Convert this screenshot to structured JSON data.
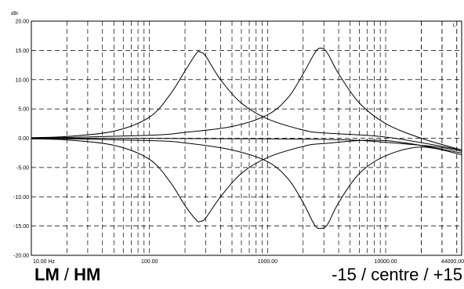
{
  "chart_data": {
    "type": "line",
    "y_unit": "dBr",
    "ylim": [
      -20,
      20
    ],
    "yticks": [
      "20.00",
      "15.00",
      "10.00",
      "5.00",
      "0.00",
      "-5.00",
      "-10.00",
      "-15.00",
      "-20.00"
    ],
    "xlim": [
      10,
      44000
    ],
    "x_scale": "log",
    "xticks": [
      {
        "value": 10,
        "label": "10.00 Hz"
      },
      {
        "value": 100,
        "label": "100.00"
      },
      {
        "value": 1000,
        "label": "1000.00"
      },
      {
        "value": 10000,
        "label": "10000.00"
      },
      {
        "value": 44000,
        "label": "44000.00"
      }
    ],
    "grid": true,
    "series": [
      {
        "x": [
          10,
          20,
          50,
          100,
          150,
          200,
          250,
          270,
          300,
          400,
          600,
          1000,
          2000,
          3000,
          10000,
          44000
        ],
        "y": [
          0.1,
          0.3,
          1.2,
          3.6,
          7.5,
          11.5,
          14.5,
          14.7,
          14.0,
          10.0,
          6.0,
          3.3,
          1.4,
          0.9,
          0.2,
          -2.0
        ]
      },
      {
        "x": [
          10,
          20,
          50,
          100,
          150,
          200,
          250,
          270,
          300,
          400,
          600,
          1000,
          2000,
          3000,
          10000,
          44000
        ],
        "y": [
          -0.1,
          -0.3,
          -1.2,
          -3.6,
          -7.5,
          -11.5,
          -14.0,
          -14.2,
          -13.6,
          -10.0,
          -6.0,
          -3.3,
          -1.4,
          -0.9,
          -0.4,
          -2.5
        ]
      },
      {
        "x": [
          10,
          100,
          200,
          500,
          1000,
          1500,
          2000,
          2500,
          2800,
          3200,
          4000,
          6000,
          10000,
          20000,
          44000
        ],
        "y": [
          0.0,
          0.5,
          1.0,
          2.0,
          4.0,
          7.0,
          11.0,
          14.5,
          15.4,
          14.6,
          11.0,
          6.0,
          2.5,
          0.0,
          -2.0
        ]
      },
      {
        "x": [
          10,
          100,
          200,
          500,
          1000,
          1500,
          2000,
          2500,
          2800,
          3200,
          4000,
          6000,
          10000,
          20000,
          44000
        ],
        "y": [
          0.0,
          -0.4,
          -0.8,
          -2.0,
          -4.0,
          -7.0,
          -11.0,
          -14.8,
          -15.4,
          -14.8,
          -11.0,
          -6.0,
          -3.0,
          -1.5,
          -2.8
        ]
      },
      {
        "x": [
          10,
          1000,
          5000,
          10000,
          20000,
          30000,
          44000
        ],
        "y": [
          0.0,
          -0.1,
          -0.3,
          -0.7,
          -1.2,
          -1.6,
          -2.2
        ]
      }
    ],
    "annotations": [
      "L"
    ]
  },
  "caption": {
    "left_a": "LM",
    "left_sep": " / ",
    "left_b": "HM",
    "right": "-15 / centre / +15"
  }
}
